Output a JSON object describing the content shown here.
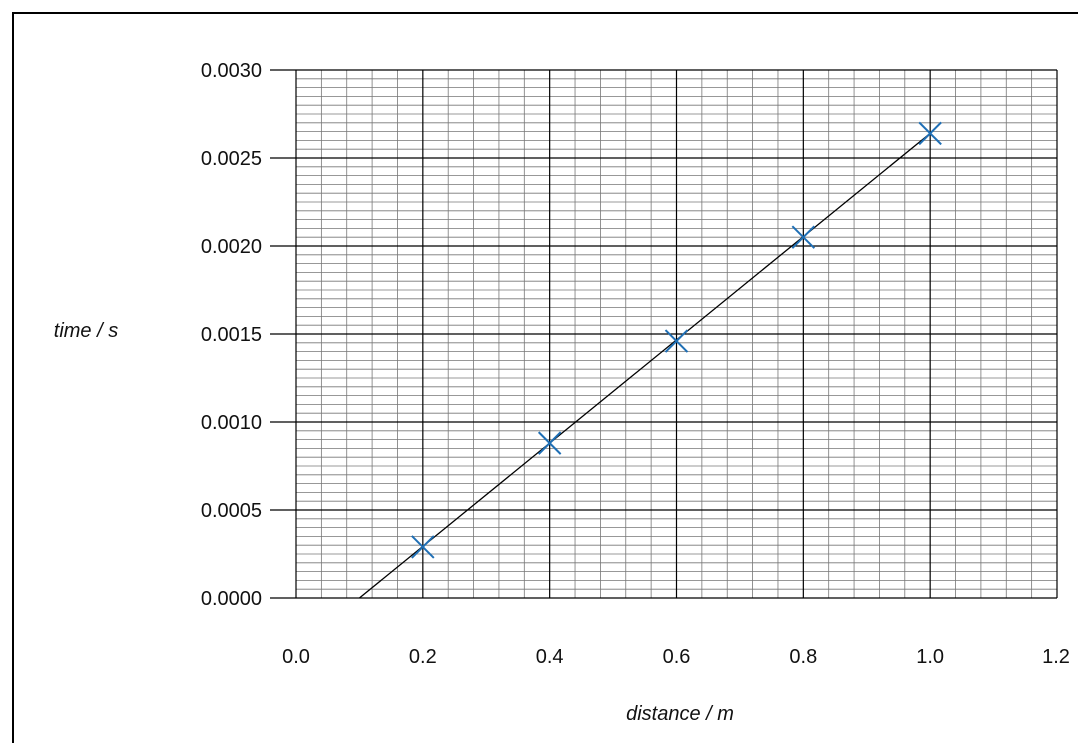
{
  "chart_data": {
    "type": "scatter",
    "title": "",
    "xlabel": "distance / m",
    "ylabel": "time / s",
    "xlim": [
      0.0,
      1.2
    ],
    "ylim": [
      0.0,
      0.003
    ],
    "x_ticks": [
      "0.0",
      "0.2",
      "0.4",
      "0.6",
      "0.8",
      "1.0",
      "1.2"
    ],
    "y_ticks": [
      "0.0000",
      "0.0005",
      "0.0010",
      "0.0015",
      "0.0020",
      "0.0025",
      "0.0030"
    ],
    "grid": true,
    "points": [
      {
        "x": 0.2,
        "y": 0.00029
      },
      {
        "x": 0.4,
        "y": 0.00088
      },
      {
        "x": 0.6,
        "y": 0.00146
      },
      {
        "x": 0.8,
        "y": 0.00205
      },
      {
        "x": 1.0,
        "y": 0.00264
      }
    ],
    "best_fit_line": {
      "x": [
        0.1,
        1.0
      ],
      "y": [
        0.0,
        0.00264
      ]
    },
    "marker": "x",
    "colors": {
      "points": "#1f6fb5",
      "line": "#000000",
      "major_grid": "#000000",
      "minor_grid": "#777777"
    }
  }
}
